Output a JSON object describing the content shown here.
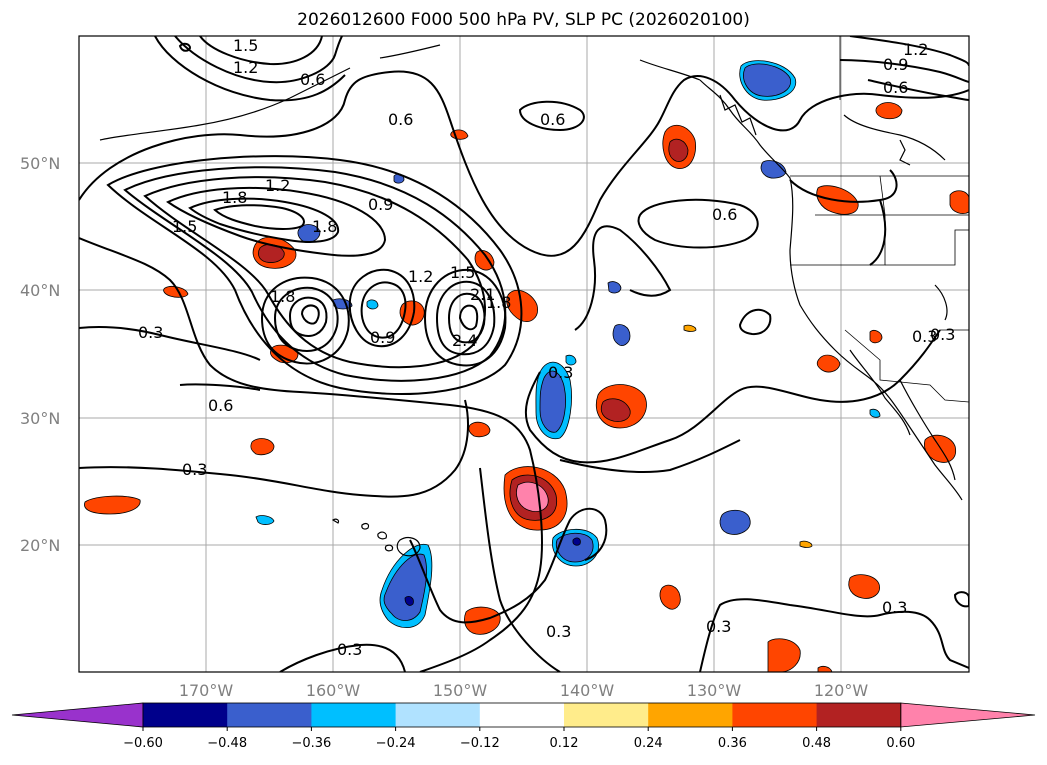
{
  "title": "2026012600 F000 500 hPa PV, SLP PC (2026020100)",
  "lat_labels": [
    "50°N",
    "40°N",
    "30°N",
    "20°N"
  ],
  "lon_labels": [
    "170°W",
    "160°W",
    "150°W",
    "140°W",
    "130°W",
    "120°W"
  ],
  "contour_labels": [
    "1.5",
    "1.2",
    "0.6",
    "1.2",
    "0.9",
    "0.6",
    "0.6",
    "0.6",
    "1.2",
    "1.8",
    "1.5",
    "1.8",
    "0.9",
    "0.6",
    "1.8",
    "1.2",
    "1.5",
    "1.8",
    "2.1",
    "0.9",
    "2.4",
    "0.3",
    "0.6",
    "0.3",
    "0.3",
    "0.3",
    "0.3",
    "0.3",
    "0.3",
    "0.3",
    "0.3"
  ],
  "colorbar": {
    "colors": [
      "#9932cc",
      "#00008b",
      "#3a5fcd",
      "#00bfff",
      "#b0e2ff",
      "#ffffff",
      "#ffec8b",
      "#ffa500",
      "#ff4500",
      "#b22222",
      "#ff82ab"
    ],
    "tick_labels": [
      "−0.60",
      "−0.48",
      "−0.36",
      "−0.24",
      "−0.12",
      "0.12",
      "0.24",
      "0.36",
      "0.48",
      "0.60"
    ]
  },
  "map_data": {
    "type": "filled contour map with contour lines",
    "filled_field": "500 hPa PV",
    "line_field": "SLP PC",
    "lat_range": [
      10,
      60
    ],
    "lon_range": [
      -180,
      -110
    ],
    "graticule": true
  }
}
